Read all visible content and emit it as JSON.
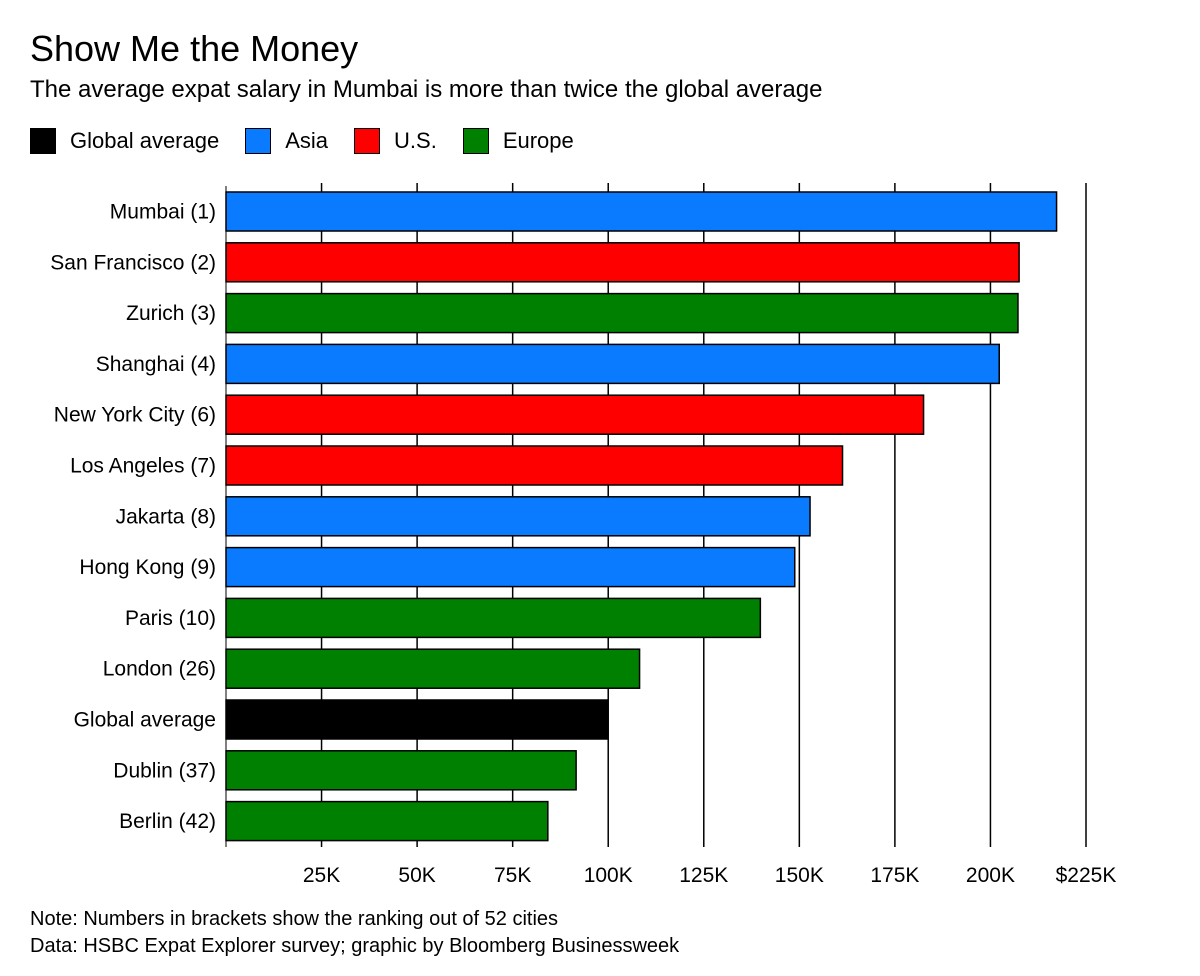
{
  "title": "Show Me the Money",
  "subtitle": "The average expat salary in Mumbai is more than twice the global average",
  "legend": [
    {
      "label": "Global average",
      "color": "#000000"
    },
    {
      "label": "Asia",
      "color": "#0a7bff"
    },
    {
      "label": "U.S.",
      "color": "#ff0000"
    },
    {
      "label": "Europe",
      "color": "#008000"
    }
  ],
  "chart_data": {
    "type": "bar",
    "orientation": "horizontal",
    "title": "Show Me the Money",
    "categories": [
      "Mumbai (1)",
      "San Francisco (2)",
      "Zurich (3)",
      "Shanghai (4)",
      "New York City (6)",
      "Los Angeles (7)",
      "Jakarta (8)",
      "Hong Kong (9)",
      "Paris (10)",
      "London (26)",
      "Global average",
      "Dublin (37)",
      "Berlin (42)"
    ],
    "values": [
      217300,
      207500,
      207200,
      202300,
      182500,
      161300,
      152800,
      148800,
      139800,
      108200,
      99900,
      91600,
      84200
    ],
    "groups": [
      "Asia",
      "U.S.",
      "Europe",
      "Asia",
      "U.S.",
      "U.S.",
      "Asia",
      "Asia",
      "Europe",
      "Europe",
      "Global average",
      "Europe",
      "Europe"
    ],
    "xlim": [
      0,
      225000
    ],
    "xticks": [
      25000,
      50000,
      75000,
      100000,
      125000,
      150000,
      175000,
      200000,
      225000
    ],
    "xtick_labels": [
      "25K",
      "50K",
      "75K",
      "100K",
      "125K",
      "150K",
      "175K",
      "200K",
      "$225K"
    ],
    "grid": "vertical",
    "legend_position": "top-left"
  },
  "footer": {
    "note": "Note: Numbers in brackets show the ranking out of 52 cities",
    "source": "Data: HSBC Expat Explorer survey; graphic by Bloomberg Businessweek"
  }
}
